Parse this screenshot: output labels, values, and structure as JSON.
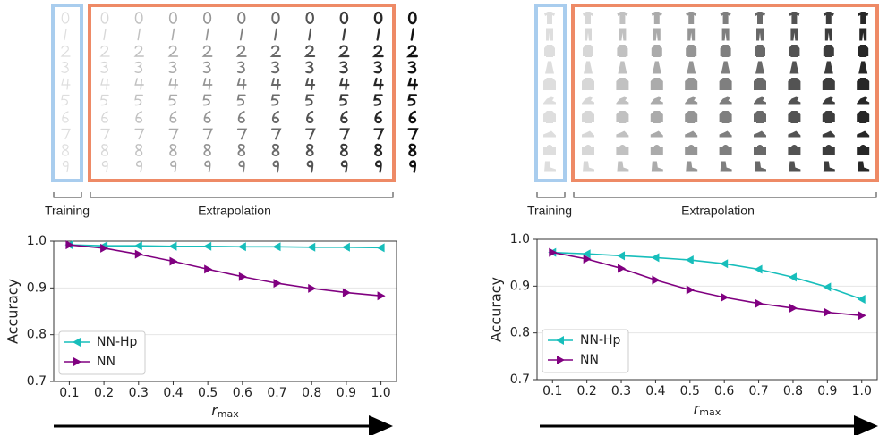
{
  "panels": [
    {
      "training_label": "Training",
      "extrapolation_label": "Extrapolation"
    },
    {
      "training_label": "Training",
      "extrapolation_label": "Extrapolation"
    }
  ],
  "chart_data": [
    {
      "type": "line",
      "ylabel": "Accuracy",
      "xlabel": "r",
      "xlabel_sub": "max",
      "x": [
        0.1,
        0.2,
        0.3,
        0.4,
        0.5,
        0.6,
        0.7,
        0.8,
        0.9,
        {
          "value": 1,
          "label": "1.0"
        }
      ],
      "xlim": [
        0.055,
        1.045
      ],
      "xticks": [
        0.1,
        0.2,
        0.3,
        0.4,
        0.5,
        0.6,
        0.7,
        0.8,
        0.9,
        {
          "value": 1,
          "label": "1.0"
        }
      ],
      "ylim": [
        0.7,
        1
      ],
      "yticks": [
        0.7,
        0.8,
        0.9,
        {
          "value": 1,
          "label": "1.0"
        }
      ],
      "grid": "y",
      "legend": "lower left",
      "series": [
        {
          "name": "NN-Hp",
          "color": "#17bebb",
          "marker": "triangle-left",
          "values": [
            0.992,
            0.99,
            0.99,
            0.989,
            0.989,
            0.988,
            0.988,
            0.987,
            0.987,
            0.986
          ]
        },
        {
          "name": "NN",
          "color": "#800080",
          "marker": "triangle-right",
          "values": [
            0.992,
            0.985,
            0.972,
            0.957,
            0.94,
            0.924,
            0.91,
            0.899,
            0.89,
            0.883
          ]
        }
      ]
    },
    {
      "type": "line",
      "ylabel": "Accuracy",
      "xlabel": "r",
      "xlabel_sub": "max",
      "x": [
        0.1,
        0.2,
        0.3,
        0.4,
        0.5,
        0.6,
        0.7,
        0.8,
        0.9,
        {
          "value": 1,
          "label": "1.0"
        }
      ],
      "xlim": [
        0.055,
        1.045
      ],
      "xticks": [
        0.1,
        0.2,
        0.3,
        0.4,
        0.5,
        0.6,
        0.7,
        0.8,
        0.9,
        {
          "value": 1,
          "label": "1.0"
        }
      ],
      "ylim": [
        0.7,
        1
      ],
      "yticks": [
        0.7,
        0.8,
        0.9,
        {
          "value": 1,
          "label": "1.0"
        }
      ],
      "grid": "y",
      "legend": "lower left",
      "series": [
        {
          "name": "NN-Hp",
          "color": "#17bebb",
          "marker": "triangle-left",
          "values": [
            0.972,
            0.969,
            0.965,
            0.961,
            0.956,
            0.948,
            0.936,
            0.919,
            0.898,
            0.872
          ]
        },
        {
          "name": "NN",
          "color": "#800080",
          "marker": "triangle-right",
          "values": [
            0.972,
            0.958,
            0.938,
            0.913,
            0.892,
            0.876,
            0.863,
            0.853,
            0.844,
            0.837
          ]
        }
      ]
    }
  ]
}
